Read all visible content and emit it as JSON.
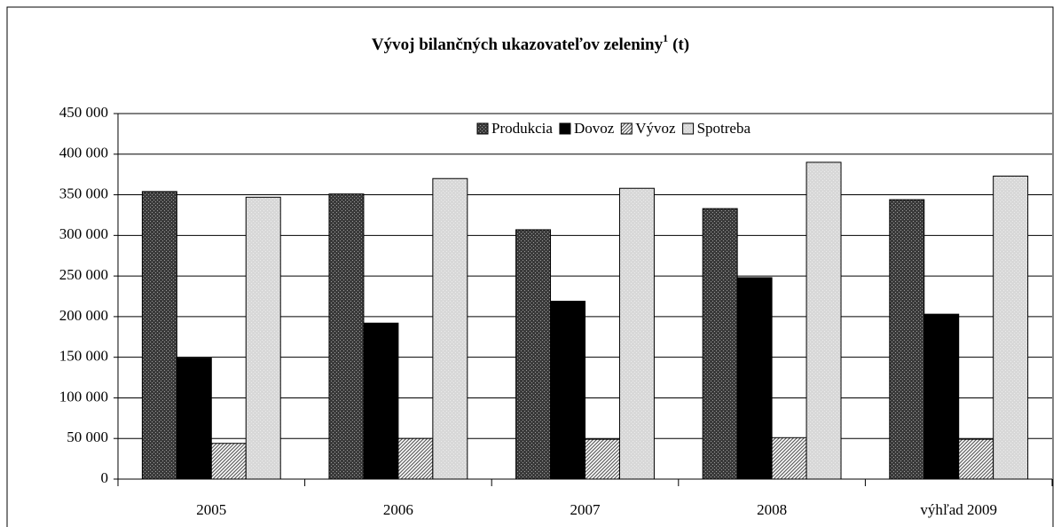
{
  "chart_data": {
    "type": "bar",
    "title": "Vývoj bilančných ukazovateľov zeleniny",
    "title_superscript": "1",
    "title_unit": "(t)",
    "categories": [
      "2005",
      "2006",
      "2007",
      "2008",
      "výhľad 2009"
    ],
    "series": [
      {
        "name": "Produkcia",
        "color": "#3a3a3a",
        "pattern": "dots",
        "values": [
          354000,
          351000,
          307000,
          333000,
          344000
        ]
      },
      {
        "name": "Dovoz",
        "color": "#000000",
        "pattern": "solid",
        "values": [
          149000,
          192000,
          219000,
          248000,
          203000
        ]
      },
      {
        "name": "Vývoz",
        "color": "#606060",
        "pattern": "hatch",
        "values": [
          44000,
          50000,
          49000,
          51000,
          49000
        ]
      },
      {
        "name": "Spotreba",
        "color": "#d8d8d8",
        "pattern": "dots",
        "values": [
          347000,
          370000,
          358000,
          390000,
          373000
        ]
      }
    ],
    "ylim": [
      0,
      450000
    ],
    "yticks": [
      0,
      {
        "value": 50000,
        "label": "50 000"
      },
      {
        "value": 100000,
        "label": "100 000"
      },
      {
        "value": 150000,
        "label": "150 000"
      },
      {
        "value": 200000,
        "label": "200 000"
      },
      {
        "value": 250000,
        "label": "250 000"
      },
      {
        "value": 300000,
        "label": "300 000"
      },
      {
        "value": 350000,
        "label": "350 000"
      },
      {
        "value": 400000,
        "label": "400 000"
      },
      {
        "value": 450000,
        "label": "450 000"
      }
    ],
    "grid": true,
    "legend": "top"
  }
}
